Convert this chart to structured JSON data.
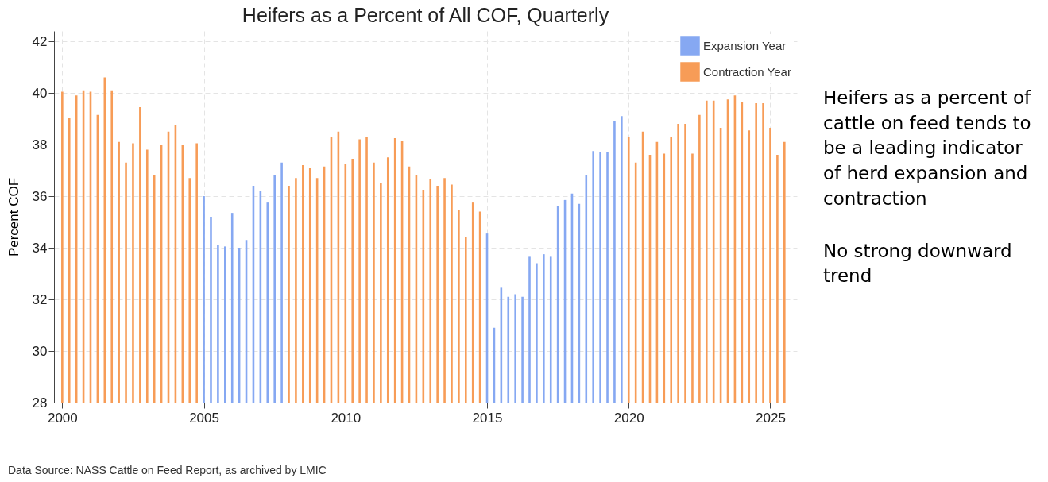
{
  "chart_data": {
    "type": "bar",
    "title": "Heifers as a Percent of All COF, Quarterly",
    "ylabel": "Percent COF",
    "xlim": [
      1999.85,
      2025.8
    ],
    "xticks": [
      2000,
      2005,
      2010,
      2015,
      2020,
      2025
    ],
    "ylim": [
      28,
      42.4
    ],
    "yticks": [
      28,
      30,
      32,
      34,
      36,
      38,
      40,
      42
    ],
    "grid": true,
    "legend": "top right",
    "annotations": [
      "Heifers as a percent of cattle on feed tends to be a leading indicator of herd expansion and contraction",
      "No strong downward trend",
      "Data Source: NASS Cattle on Feed Report, as archived by LMIC"
    ],
    "series": [
      {
        "name": "Expansion Year",
        "color": "#86a8f2",
        "x": [
          2005,
          2005.25,
          2005.5,
          2005.75,
          2006,
          2006.25,
          2006.5,
          2006.75,
          2007,
          2007.25,
          2007.5,
          2007.75,
          2015,
          2015.25,
          2015.5,
          2015.75,
          2016,
          2016.25,
          2016.5,
          2016.75,
          2017,
          2017.25,
          2017.5,
          2017.75,
          2018,
          2018.25,
          2018.5,
          2018.75,
          2019,
          2019.25,
          2019.5,
          2019.75
        ],
        "values": [
          36.0,
          35.2,
          34.1,
          34.05,
          35.35,
          34.0,
          34.3,
          36.4,
          36.2,
          35.75,
          36.8,
          37.3,
          34.55,
          30.9,
          32.45,
          32.1,
          32.2,
          32.1,
          33.65,
          33.4,
          33.75,
          33.65,
          35.6,
          35.85,
          36.1,
          35.7,
          36.8,
          37.75,
          37.7,
          37.7,
          38.9,
          39.1
        ]
      },
      {
        "name": "Contraction Year",
        "color": "#f79c57",
        "x": [
          2000,
          2000.25,
          2000.5,
          2000.75,
          2001,
          2001.25,
          2001.5,
          2001.75,
          2002,
          2002.25,
          2002.5,
          2002.75,
          2003,
          2003.25,
          2003.5,
          2003.75,
          2004,
          2004.25,
          2004.5,
          2004.75,
          2008,
          2008.25,
          2008.5,
          2008.75,
          2009,
          2009.25,
          2009.5,
          2009.75,
          2010,
          2010.25,
          2010.5,
          2010.75,
          2011,
          2011.25,
          2011.5,
          2011.75,
          2012,
          2012.25,
          2012.5,
          2012.75,
          2013,
          2013.25,
          2013.5,
          2013.75,
          2014,
          2014.25,
          2014.5,
          2014.75,
          2020,
          2020.25,
          2020.5,
          2020.75,
          2021,
          2021.25,
          2021.5,
          2021.75,
          2022,
          2022.25,
          2022.5,
          2022.75,
          2023,
          2023.25,
          2023.5,
          2023.75,
          2024,
          2024.25,
          2024.5,
          2024.75,
          2025,
          2025.25,
          2025.5
        ],
        "values": [
          40.05,
          39.05,
          39.9,
          40.1,
          40.05,
          39.15,
          40.6,
          40.1,
          38.1,
          37.3,
          38.05,
          39.45,
          37.8,
          36.8,
          38.0,
          38.5,
          38.75,
          38.0,
          36.7,
          38.05,
          36.4,
          36.7,
          37.2,
          37.1,
          36.7,
          37.15,
          38.3,
          38.5,
          37.25,
          37.45,
          38.2,
          38.3,
          37.3,
          36.5,
          37.5,
          38.25,
          38.15,
          37.15,
          36.8,
          36.25,
          36.65,
          36.4,
          36.7,
          36.45,
          35.45,
          34.4,
          35.75,
          35.4,
          38.3,
          37.3,
          38.5,
          37.6,
          38.1,
          37.65,
          38.3,
          38.8,
          38.8,
          37.65,
          39.15,
          39.7,
          39.7,
          38.65,
          39.75,
          39.9,
          39.65,
          38.55,
          39.6,
          39.6,
          38.65,
          37.6,
          38.1
        ]
      }
    ]
  }
}
